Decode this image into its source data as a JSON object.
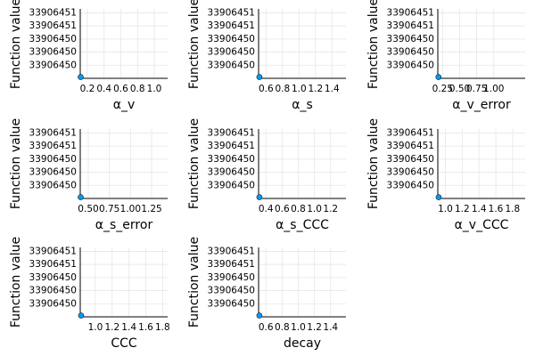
{
  "chart_data": [
    {
      "type": "scatter",
      "x_label": "α_v",
      "y_label": "Function value",
      "color": "#009af9",
      "grid": true,
      "x": [
        0.12
      ],
      "y": [
        33906449.82
      ],
      "xlim": [
        0.115,
        1.16
      ],
      "ylim": [
        33906449.8,
        33906450.86
      ],
      "xticks": [
        0.2,
        0.4,
        0.6,
        0.8,
        {
          "value": 1,
          "label": "1.0"
        }
      ],
      "yticks": [
        {
          "value": 33906450.0,
          "label": "33906450"
        },
        {
          "value": 33906450.2,
          "label": "33906450"
        },
        {
          "value": 33906450.4,
          "label": "33906450"
        },
        {
          "value": 33906450.6,
          "label": "33906451"
        },
        {
          "value": 33906450.8,
          "label": "33906451"
        }
      ]
    },
    {
      "type": "scatter",
      "x_label": "α_s",
      "y_label": "Function value",
      "color": "#009af9",
      "grid": true,
      "x": [
        0.52
      ],
      "y": [
        33906449.82
      ],
      "xlim": [
        0.51,
        1.57
      ],
      "ylim": [
        33906449.8,
        33906450.86
      ],
      "xticks": [
        0.6,
        0.8,
        {
          "value": 1,
          "label": "1.0"
        },
        1.2,
        1.4
      ],
      "yticks": [
        {
          "value": 33906450.0,
          "label": "33906450"
        },
        {
          "value": 33906450.2,
          "label": "33906450"
        },
        {
          "value": 33906450.4,
          "label": "33906450"
        },
        {
          "value": 33906450.6,
          "label": "33906451"
        },
        {
          "value": 33906450.8,
          "label": "33906451"
        }
      ]
    },
    {
      "type": "scatter",
      "x_label": "α_v_error",
      "y_label": "Function value",
      "color": "#009af9",
      "grid": true,
      "x": [
        0.19
      ],
      "y": [
        33906449.82
      ],
      "xlim": [
        0.18,
        1.46
      ],
      "ylim": [
        33906449.8,
        33906450.86
      ],
      "xticks": [
        0.25,
        {
          "value": 0.5,
          "label": "0.50"
        },
        0.75,
        {
          "value": 1,
          "label": "1.00"
        }
      ],
      "yticks": [
        {
          "value": 33906450.0,
          "label": "33906450"
        },
        {
          "value": 33906450.2,
          "label": "33906450"
        },
        {
          "value": 33906450.4,
          "label": "33906450"
        },
        {
          "value": 33906450.6,
          "label": "33906451"
        },
        {
          "value": 33906450.8,
          "label": "33906451"
        }
      ]
    },
    {
      "type": "scatter",
      "x_label": "α_s_error",
      "y_label": "Function value",
      "color": "#009af9",
      "grid": true,
      "x": [
        0.41
      ],
      "y": [
        33906449.82
      ],
      "xlim": [
        0.405,
        1.44
      ],
      "ylim": [
        33906449.8,
        33906450.86
      ],
      "xticks": [
        {
          "value": 0.5,
          "label": "0.50"
        },
        0.75,
        {
          "value": 1,
          "label": "1.00"
        },
        1.25
      ],
      "yticks": [
        {
          "value": 33906450.0,
          "label": "33906450"
        },
        {
          "value": 33906450.2,
          "label": "33906450"
        },
        {
          "value": 33906450.4,
          "label": "33906450"
        },
        {
          "value": 33906450.6,
          "label": "33906451"
        },
        {
          "value": 33906450.8,
          "label": "33906451"
        }
      ]
    },
    {
      "type": "scatter",
      "x_label": "α_s_CCC",
      "y_label": "Function value",
      "color": "#009af9",
      "grid": true,
      "x": [
        0.32
      ],
      "y": [
        33906449.82
      ],
      "xlim": [
        0.31,
        1.39
      ],
      "ylim": [
        33906449.8,
        33906450.86
      ],
      "xticks": [
        0.4,
        0.6,
        0.8,
        {
          "value": 1,
          "label": "1.0"
        },
        1.2
      ],
      "yticks": [
        {
          "value": 33906450.0,
          "label": "33906450"
        },
        {
          "value": 33906450.2,
          "label": "33906450"
        },
        {
          "value": 33906450.4,
          "label": "33906450"
        },
        {
          "value": 33906450.6,
          "label": "33906451"
        },
        {
          "value": 33906450.8,
          "label": "33906451"
        }
      ]
    },
    {
      "type": "scatter",
      "x_label": "α_v_CCC",
      "y_label": "Function value",
      "color": "#009af9",
      "grid": true,
      "x": [
        0.92
      ],
      "y": [
        33906449.82
      ],
      "xlim": [
        0.91,
        1.95
      ],
      "ylim": [
        33906449.8,
        33906450.86
      ],
      "xticks": [
        {
          "value": 1,
          "label": "1.0"
        },
        1.2,
        1.4,
        1.6,
        1.8
      ],
      "yticks": [
        {
          "value": 33906450.0,
          "label": "33906450"
        },
        {
          "value": 33906450.2,
          "label": "33906450"
        },
        {
          "value": 33906450.4,
          "label": "33906450"
        },
        {
          "value": 33906450.6,
          "label": "33906451"
        },
        {
          "value": 33906450.8,
          "label": "33906451"
        }
      ]
    },
    {
      "type": "scatter",
      "x_label": "CCC",
      "y_label": "Function value",
      "color": "#009af9",
      "grid": true,
      "x": [
        0.83
      ],
      "y": [
        33906449.82
      ],
      "xlim": [
        0.82,
        1.86
      ],
      "ylim": [
        33906449.8,
        33906450.86
      ],
      "xticks": [
        {
          "value": 1,
          "label": "1.0"
        },
        1.2,
        1.4,
        1.6,
        1.8
      ],
      "yticks": [
        {
          "value": 33906450.0,
          "label": "33906450"
        },
        {
          "value": 33906450.2,
          "label": "33906450"
        },
        {
          "value": 33906450.4,
          "label": "33906450"
        },
        {
          "value": 33906450.6,
          "label": "33906451"
        },
        {
          "value": 33906450.8,
          "label": "33906451"
        }
      ]
    },
    {
      "type": "scatter",
      "x_label": "decay",
      "y_label": "Function value",
      "color": "#009af9",
      "grid": true,
      "x": [
        0.52
      ],
      "y": [
        33906449.82
      ],
      "xlim": [
        0.51,
        1.59
      ],
      "ylim": [
        33906449.8,
        33906450.86
      ],
      "xticks": [
        0.6,
        0.8,
        {
          "value": 1,
          "label": "1.0"
        },
        1.2,
        1.4
      ],
      "yticks": [
        {
          "value": 33906450.0,
          "label": "33906450"
        },
        {
          "value": 33906450.2,
          "label": "33906450"
        },
        {
          "value": 33906450.4,
          "label": "33906450"
        },
        {
          "value": 33906450.6,
          "label": "33906451"
        },
        {
          "value": 33906450.8,
          "label": "33906451"
        }
      ]
    }
  ]
}
